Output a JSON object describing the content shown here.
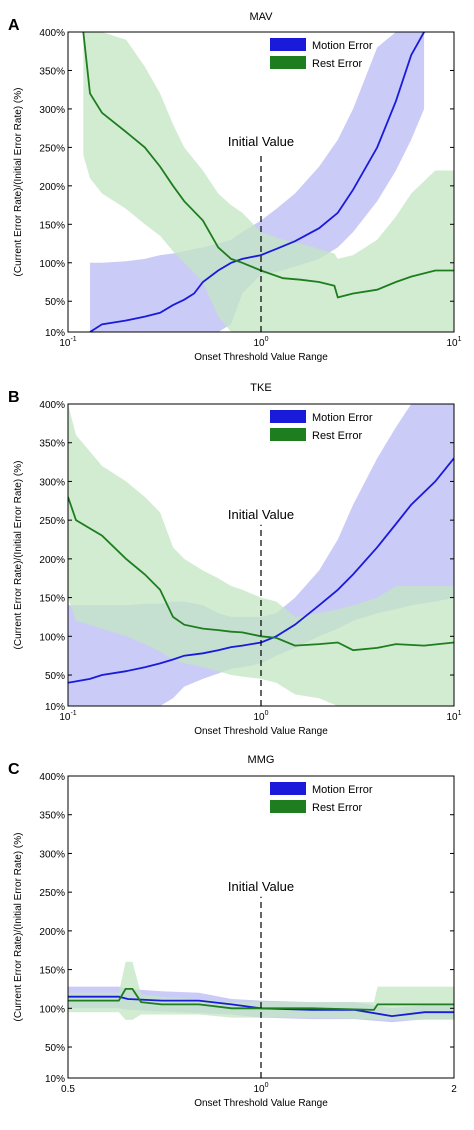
{
  "chart_data": [
    {
      "type": "line",
      "panel": "A",
      "title": "MAV",
      "xlabel": "Onset Threshold Value Range",
      "ylabel": "(Current Error Rate)/(Initial Error Rate) (%)",
      "xscale": "log",
      "xlim": [
        0.1,
        10
      ],
      "ylim": [
        10,
        400
      ],
      "x_ticks": [
        0.1,
        1,
        10
      ],
      "x_tick_labels": [
        {
          "base": "10",
          "exp": "-1"
        },
        {
          "base": "10",
          "exp": "0"
        },
        {
          "base": "10",
          "exp": "1"
        }
      ],
      "y_ticks": [
        10,
        50,
        100,
        150,
        200,
        250,
        300,
        350,
        400
      ],
      "y_tick_labels": [
        "10%",
        "50%",
        "100%",
        "150%",
        "200%",
        "250%",
        "300%",
        "350%",
        "400%"
      ],
      "legend_position": "top-right",
      "annotation": {
        "text": "Initial Value",
        "x": 1
      },
      "series": [
        {
          "name": "Motion Error",
          "color": "#1a1adb",
          "band_color": "#b9b9f5",
          "x": [
            0.13,
            0.15,
            0.2,
            0.25,
            0.3,
            0.35,
            0.4,
            0.45,
            0.5,
            0.6,
            0.7,
            0.8,
            1.0,
            1.2,
            1.5,
            2.0,
            2.5,
            3.0,
            4.0,
            5.0,
            6.0,
            7.0
          ],
          "mean": [
            10,
            20,
            25,
            30,
            35,
            45,
            52,
            60,
            75,
            90,
            100,
            105,
            110,
            118,
            128,
            145,
            165,
            195,
            250,
            310,
            370,
            400
          ],
          "lower": [
            10,
            10,
            10,
            10,
            10,
            10,
            10,
            10,
            10,
            10,
            20,
            60,
            85,
            88,
            95,
            105,
            120,
            140,
            180,
            220,
            260,
            300
          ],
          "upper": [
            100,
            100,
            102,
            105,
            110,
            112,
            115,
            118,
            120,
            125,
            130,
            140,
            155,
            170,
            190,
            225,
            260,
            300,
            380,
            400,
            400,
            400
          ]
        },
        {
          "name": "Rest Error",
          "color": "#1e7d1e",
          "band_color": "#c3e6c3",
          "x": [
            0.12,
            0.13,
            0.15,
            0.2,
            0.25,
            0.3,
            0.35,
            0.4,
            0.5,
            0.6,
            0.7,
            0.8,
            1.0,
            1.3,
            1.6,
            2.0,
            2.4,
            2.5,
            3.0,
            4.0,
            5.0,
            6.0,
            8.0,
            10.0
          ],
          "mean": [
            400,
            320,
            295,
            270,
            250,
            225,
            200,
            180,
            155,
            120,
            105,
            100,
            90,
            80,
            78,
            75,
            70,
            55,
            60,
            65,
            75,
            82,
            90,
            90
          ],
          "lower": [
            240,
            210,
            190,
            170,
            150,
            135,
            115,
            100,
            75,
            30,
            10,
            10,
            10,
            10,
            10,
            10,
            10,
            10,
            10,
            10,
            10,
            10,
            10,
            10
          ],
          "upper": [
            400,
            400,
            400,
            390,
            355,
            320,
            280,
            250,
            220,
            190,
            175,
            165,
            140,
            130,
            125,
            118,
            112,
            105,
            110,
            130,
            160,
            190,
            220,
            220
          ]
        }
      ]
    },
    {
      "type": "line",
      "panel": "B",
      "title": "TKE",
      "xlabel": "Onset Threshold Value Range",
      "ylabel": "(Current Error Rate)/(Initial Error Rate) (%)",
      "xscale": "log",
      "xlim": [
        0.1,
        10
      ],
      "ylim": [
        10,
        400
      ],
      "x_ticks": [
        0.1,
        1,
        10
      ],
      "x_tick_labels": [
        {
          "base": "10",
          "exp": "-1"
        },
        {
          "base": "10",
          "exp": "0"
        },
        {
          "base": "10",
          "exp": "1"
        }
      ],
      "y_ticks": [
        10,
        50,
        100,
        150,
        200,
        250,
        300,
        350,
        400
      ],
      "y_tick_labels": [
        "10%",
        "50%",
        "100%",
        "150%",
        "200%",
        "250%",
        "300%",
        "350%",
        "400%"
      ],
      "legend_position": "top-right",
      "annotation": {
        "text": "Initial Value",
        "x": 1
      },
      "series": [
        {
          "name": "Motion Error",
          "color": "#1a1adb",
          "band_color": "#b9b9f5",
          "x": [
            0.1,
            0.13,
            0.15,
            0.2,
            0.25,
            0.3,
            0.35,
            0.4,
            0.5,
            0.6,
            0.7,
            0.8,
            1.0,
            1.2,
            1.5,
            2.0,
            2.5,
            3.0,
            4.0,
            5.0,
            6.0,
            8.0,
            10.0
          ],
          "mean": [
            40,
            45,
            50,
            55,
            60,
            65,
            70,
            75,
            78,
            82,
            86,
            88,
            92,
            100,
            115,
            140,
            160,
            180,
            215,
            245,
            270,
            300,
            330
          ],
          "lower": [
            10,
            10,
            10,
            10,
            10,
            10,
            20,
            35,
            45,
            52,
            58,
            60,
            65,
            75,
            85,
            100,
            110,
            120,
            130,
            135,
            140,
            145,
            150
          ],
          "upper": [
            140,
            140,
            140,
            140,
            142,
            142,
            145,
            145,
            140,
            130,
            125,
            125,
            125,
            130,
            150,
            185,
            225,
            270,
            330,
            370,
            400,
            400,
            400
          ]
        },
        {
          "name": "Rest Error",
          "color": "#1e7d1e",
          "band_color": "#c3e6c3",
          "x": [
            0.1,
            0.11,
            0.15,
            0.2,
            0.25,
            0.3,
            0.35,
            0.4,
            0.5,
            0.6,
            0.7,
            0.8,
            1.0,
            1.2,
            1.5,
            2.0,
            2.5,
            3.0,
            4.0,
            5.0,
            7.0,
            10.0
          ],
          "mean": [
            280,
            250,
            230,
            200,
            180,
            160,
            125,
            115,
            110,
            108,
            106,
            105,
            100,
            98,
            88,
            90,
            92,
            82,
            85,
            90,
            88,
            92
          ],
          "lower": [
            150,
            120,
            110,
            100,
            90,
            80,
            70,
            65,
            60,
            55,
            50,
            48,
            45,
            40,
            25,
            20,
            10,
            10,
            10,
            10,
            10,
            10
          ],
          "upper": [
            400,
            360,
            320,
            300,
            280,
            260,
            215,
            200,
            185,
            175,
            165,
            160,
            150,
            145,
            125,
            130,
            135,
            140,
            150,
            165,
            165,
            165
          ]
        }
      ]
    },
    {
      "type": "line",
      "panel": "C",
      "title": "MMG",
      "xlabel": "Onset Threshold Value Range",
      "ylabel": "(Current Error Rate)/(Initial Error Rate) (%)",
      "xscale": "log",
      "xlim": [
        0.5,
        2
      ],
      "ylim": [
        10,
        400
      ],
      "x_ticks": [
        0.5,
        1,
        2
      ],
      "x_tick_labels": [
        {
          "base": "0.5",
          "exp": ""
        },
        {
          "base": "10",
          "exp": "0"
        },
        {
          "base": "2",
          "exp": ""
        }
      ],
      "y_ticks": [
        10,
        50,
        100,
        150,
        200,
        250,
        300,
        350,
        400
      ],
      "y_tick_labels": [
        "10%",
        "50%",
        "100%",
        "150%",
        "200%",
        "250%",
        "300%",
        "350%",
        "400%"
      ],
      "legend_position": "top-right",
      "annotation": {
        "text": "Initial Value",
        "x": 1
      },
      "series": [
        {
          "name": "Motion Error",
          "color": "#1a1adb",
          "band_color": "#b9b9f5",
          "x": [
            0.5,
            0.6,
            0.62,
            0.7,
            0.8,
            0.9,
            1.0,
            1.2,
            1.4,
            1.6,
            1.8,
            2.0
          ],
          "mean": [
            115,
            115,
            112,
            110,
            110,
            105,
            100,
            98,
            98,
            90,
            95,
            95
          ],
          "lower": [
            100,
            100,
            98,
            96,
            94,
            92,
            88,
            86,
            86,
            82,
            86,
            86
          ],
          "upper": [
            128,
            128,
            125,
            122,
            120,
            112,
            110,
            108,
            108,
            100,
            104,
            104
          ]
        },
        {
          "name": "Rest Error",
          "color": "#1e7d1e",
          "band_color": "#c3e6c3",
          "x": [
            0.5,
            0.6,
            0.615,
            0.63,
            0.65,
            0.7,
            0.8,
            0.9,
            1.0,
            1.2,
            1.5,
            1.52,
            1.8,
            2.0
          ],
          "mean": [
            110,
            110,
            125,
            125,
            108,
            105,
            105,
            100,
            100,
            100,
            98,
            105,
            105,
            105
          ],
          "lower": [
            95,
            95,
            85,
            85,
            92,
            92,
            92,
            88,
            88,
            88,
            86,
            85,
            85,
            85
          ],
          "upper": [
            120,
            120,
            160,
            160,
            118,
            115,
            112,
            108,
            108,
            108,
            108,
            128,
            128,
            128
          ]
        }
      ]
    }
  ]
}
